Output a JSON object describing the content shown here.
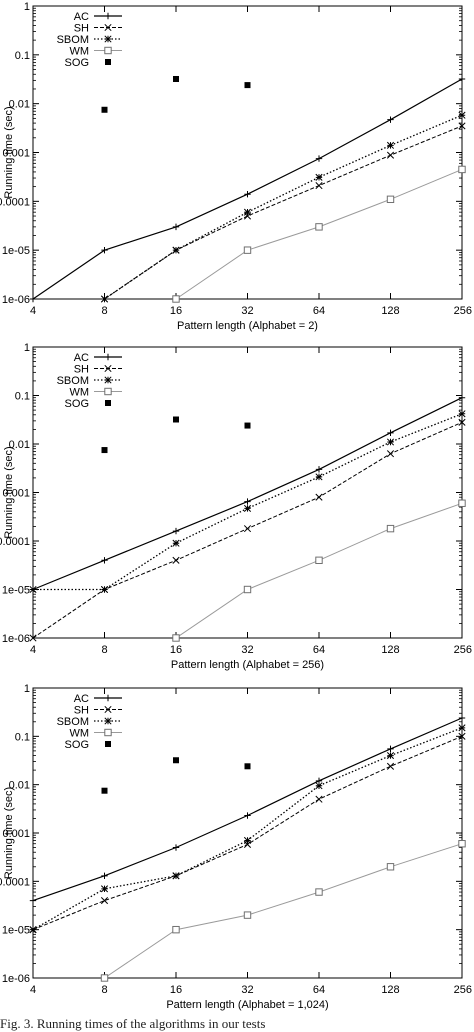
{
  "caption": "Fig. 3. Running times of the algorithms in our tests",
  "chart_data": [
    {
      "type": "line",
      "xlabel": "Pattern length (Alphabet = 2)",
      "ylabel": "Running time (sec)",
      "x": [
        4,
        8,
        16,
        32,
        64,
        128,
        256
      ],
      "x_ticks": [
        "4",
        "8",
        "16",
        "32",
        "64",
        "128",
        "256"
      ],
      "x_scale": "log2",
      "y_scale": "log",
      "ylim": [
        1e-06,
        1
      ],
      "y_ticks": [
        "1e-06",
        "1e-05",
        "0.0001",
        "0.001",
        "0.01",
        "0.1",
        "1"
      ],
      "legend_position": "top-left",
      "series": [
        {
          "name": "AC",
          "style": "solid-plus",
          "values": [
            1e-06,
            1e-05,
            3e-05,
            0.00014,
            0.00075,
            0.0047,
            0.032
          ]
        },
        {
          "name": "SH",
          "style": "dashed-x",
          "values": [
            null,
            1e-06,
            1e-05,
            5e-05,
            0.00021,
            0.00088,
            0.0035
          ]
        },
        {
          "name": "SBOM",
          "style": "dotted-star",
          "values": [
            null,
            1e-06,
            1e-05,
            6e-05,
            0.00031,
            0.0014,
            0.0058
          ]
        },
        {
          "name": "WM",
          "style": "gray-square",
          "values": [
            null,
            null,
            1e-06,
            1e-05,
            3e-05,
            0.00011,
            0.00045
          ]
        },
        {
          "name": "SOG",
          "style": "filled-square",
          "values": [
            null,
            0.0075,
            0.032,
            0.024,
            null,
            null,
            null
          ]
        }
      ]
    },
    {
      "type": "line",
      "xlabel": "Pattern length (Alphabet = 256)",
      "ylabel": "Running time (sec)",
      "x": [
        4,
        8,
        16,
        32,
        64,
        128,
        256
      ],
      "x_ticks": [
        "4",
        "8",
        "16",
        "32",
        "64",
        "128",
        "256"
      ],
      "x_scale": "log2",
      "y_scale": "log",
      "ylim": [
        1e-06,
        1
      ],
      "y_ticks": [
        "1e-06",
        "1e-05",
        "0.0001",
        "0.001",
        "0.01",
        "0.1",
        "1"
      ],
      "legend_position": "top-left",
      "series": [
        {
          "name": "AC",
          "style": "solid-plus",
          "values": [
            1e-05,
            4e-05,
            0.00016,
            0.00065,
            0.003,
            0.017,
            0.09
          ]
        },
        {
          "name": "SH",
          "style": "dashed-x",
          "values": [
            1e-06,
            1e-05,
            4e-05,
            0.00018,
            0.0008,
            0.0063,
            0.028
          ]
        },
        {
          "name": "SBOM",
          "style": "dotted-star",
          "values": [
            1e-05,
            1e-05,
            9e-05,
            0.00047,
            0.0021,
            0.011,
            0.042
          ]
        },
        {
          "name": "WM",
          "style": "gray-square",
          "values": [
            null,
            null,
            1e-06,
            1e-05,
            4e-05,
            0.00018,
            0.0006
          ]
        },
        {
          "name": "SOG",
          "style": "filled-square",
          "values": [
            null,
            0.0075,
            0.032,
            0.024,
            null,
            null,
            null
          ]
        }
      ]
    },
    {
      "type": "line",
      "xlabel": "Pattern length (Alphabet = 1,024)",
      "ylabel": "Running time (sec)",
      "x": [
        4,
        8,
        16,
        32,
        64,
        128,
        256
      ],
      "x_ticks": [
        "4",
        "8",
        "16",
        "32",
        "64",
        "128",
        "256"
      ],
      "x_scale": "log2",
      "y_scale": "log",
      "ylim": [
        1e-06,
        1
      ],
      "y_ticks": [
        "1e-06",
        "1e-05",
        "0.0001",
        "0.001",
        "0.01",
        "0.1",
        "1"
      ],
      "legend_position": "top-left",
      "series": [
        {
          "name": "AC",
          "style": "solid-plus",
          "values": [
            4e-05,
            0.00013,
            0.0005,
            0.0023,
            0.012,
            0.055,
            0.24
          ]
        },
        {
          "name": "SH",
          "style": "dashed-x",
          "values": [
            1e-05,
            4e-05,
            0.00013,
            0.00058,
            0.005,
            0.024,
            0.1
          ]
        },
        {
          "name": "SBOM",
          "style": "dotted-star",
          "values": [
            1e-05,
            7e-05,
            0.00013,
            0.0007,
            0.0095,
            0.04,
            0.15
          ]
        },
        {
          "name": "WM",
          "style": "gray-square",
          "values": [
            null,
            1e-06,
            1e-05,
            2e-05,
            6e-05,
            0.0002,
            0.0006
          ]
        },
        {
          "name": "SOG",
          "style": "filled-square",
          "values": [
            null,
            0.0075,
            0.032,
            0.024,
            null,
            null,
            null
          ]
        }
      ]
    }
  ]
}
